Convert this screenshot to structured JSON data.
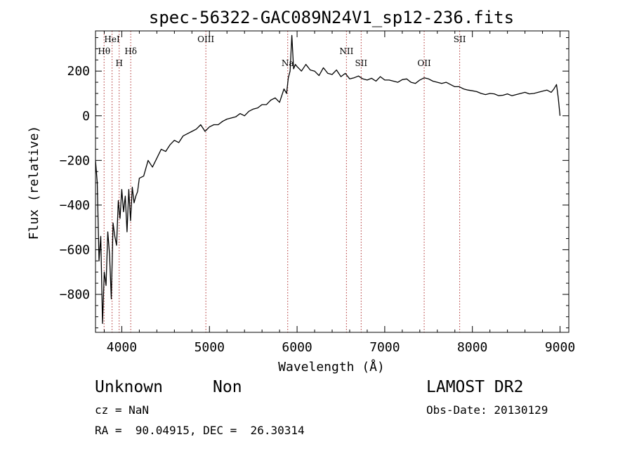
{
  "chart_data": {
    "type": "line",
    "title": "spec-56322-GAC089N24V1_sp12-236.fits",
    "xlabel": "Wavelength (Å)",
    "ylabel": "Flux (relative)",
    "xlim": [
      3700,
      9100
    ],
    "ylim": [
      -970,
      380
    ],
    "xticks": [
      4000,
      5000,
      6000,
      7000,
      8000,
      9000
    ],
    "yticks": [
      -800,
      -600,
      -400,
      -200,
      0,
      200
    ],
    "grid": false,
    "line_color": "#000000",
    "marker_color": "#b03030",
    "spectral_lines": [
      {
        "label": "HeI",
        "wavelength": 3889
      },
      {
        "label": "Hθ",
        "wavelength": 3798
      },
      {
        "label": "H",
        "wavelength": 3970
      },
      {
        "label": "Hδ",
        "wavelength": 4102
      },
      {
        "label": "OIII",
        "wavelength": 4959
      },
      {
        "label": "Na",
        "wavelength": 5893
      },
      {
        "label": "NII",
        "wavelength": 6563
      },
      {
        "label": "SII",
        "wavelength": 6731
      },
      {
        "label": "OII",
        "wavelength": 7450
      },
      {
        "label": "SII",
        "wavelength": 7855
      }
    ],
    "series": [
      {
        "x": [
          3700,
          3720,
          3740,
          3760,
          3780,
          3800,
          3820,
          3840,
          3860,
          3880,
          3900,
          3920,
          3940,
          3960,
          3980,
          4000,
          4020,
          4040,
          4060,
          4080,
          4100,
          4120,
          4140,
          4160,
          4180,
          4200,
          4250,
          4300,
          4350,
          4400,
          4450,
          4500,
          4550,
          4600,
          4650,
          4700,
          4750,
          4800,
          4850,
          4900,
          4950,
          5000,
          5050,
          5100,
          5150,
          5200,
          5250,
          5300,
          5350,
          5400,
          5450,
          5500,
          5550,
          5600,
          5650,
          5700,
          5750,
          5800,
          5850,
          5880,
          5900,
          5920,
          5940,
          5960,
          5980,
          6000,
          6050,
          6100,
          6150,
          6200,
          6250,
          6300,
          6350,
          6400,
          6450,
          6500,
          6550,
          6600,
          6650,
          6700,
          6750,
          6800,
          6850,
          6900,
          6950,
          7000,
          7050,
          7100,
          7150,
          7200,
          7250,
          7300,
          7350,
          7400,
          7450,
          7500,
          7550,
          7600,
          7650,
          7700,
          7750,
          7800,
          7850,
          7900,
          7950,
          8000,
          8050,
          8100,
          8150,
          8200,
          8250,
          8300,
          8350,
          8400,
          8450,
          8500,
          8550,
          8600,
          8650,
          8700,
          8750,
          8800,
          8850,
          8900,
          8930,
          8960,
          8980,
          9000
        ],
        "y": [
          -200,
          -300,
          -650,
          -540,
          -930,
          -700,
          -760,
          -520,
          -620,
          -820,
          -480,
          -540,
          -580,
          -380,
          -460,
          -330,
          -430,
          -360,
          -520,
          -330,
          -470,
          -320,
          -390,
          -360,
          -340,
          -280,
          -270,
          -200,
          -230,
          -190,
          -150,
          -160,
          -130,
          -110,
          -120,
          -90,
          -80,
          -70,
          -60,
          -40,
          -70,
          -50,
          -40,
          -40,
          -25,
          -15,
          -10,
          -5,
          10,
          0,
          20,
          30,
          35,
          50,
          50,
          70,
          80,
          60,
          120,
          100,
          170,
          200,
          360,
          210,
          230,
          220,
          200,
          230,
          205,
          200,
          180,
          215,
          190,
          185,
          205,
          175,
          190,
          165,
          170,
          178,
          165,
          160,
          168,
          155,
          175,
          160,
          160,
          155,
          150,
          162,
          165,
          150,
          145,
          160,
          170,
          165,
          155,
          150,
          145,
          150,
          140,
          130,
          130,
          120,
          115,
          112,
          108,
          100,
          95,
          100,
          98,
          90,
          92,
          98,
          90,
          95,
          100,
          105,
          98,
          100,
          105,
          110,
          115,
          105,
          120,
          140,
          80,
          0
        ]
      }
    ],
    "object_class": "Unknown",
    "object_subclass": "Non",
    "cz": "cz = NaN",
    "coords": "RA =  90.04915, DEC =  26.30314",
    "survey": "LAMOST DR2",
    "obs_date": "Obs-Date: 20130129"
  }
}
